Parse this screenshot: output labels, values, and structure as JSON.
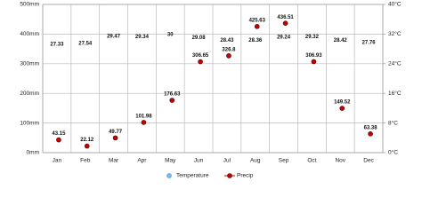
{
  "chart_data": {
    "type": "climate",
    "categories": [
      "Jan",
      "Feb",
      "Mar",
      "Apr",
      "May",
      "Jun",
      "Jul",
      "Aug",
      "Sep",
      "Oct",
      "Nov",
      "Dec"
    ],
    "series": [
      {
        "name": "Temperature",
        "color": "#7cb5ec",
        "axis": "y2",
        "values": [
          27.33,
          27.54,
          29.47,
          29.34,
          30,
          29.08,
          28.43,
          28.36,
          29.24,
          29.32,
          28.42,
          27.76
        ]
      },
      {
        "name": "Precip",
        "color": "#cc0000",
        "values": [
          43.15,
          22.12,
          49.77,
          101.98,
          176.63,
          306.65,
          326.8,
          425.63,
          436.51,
          306.93,
          149.52,
          63.38
        ]
      }
    ],
    "ylim": [
      0,
      500
    ],
    "yticks": [
      {
        "value": 0,
        "label": "0mm"
      },
      {
        "value": 100,
        "label": "100mm"
      },
      {
        "value": 200,
        "label": "200mm"
      },
      {
        "value": 300,
        "label": "300mm"
      },
      {
        "value": 400,
        "label": "400mm"
      },
      {
        "value": 500,
        "label": "500mm"
      }
    ],
    "y2lim": [
      0,
      40
    ],
    "y2ticks": [
      {
        "value": 0,
        "label": "0°C"
      },
      {
        "value": 8,
        "label": "8°C"
      },
      {
        "value": 16,
        "label": "16°C"
      },
      {
        "value": 24,
        "label": "24°C"
      },
      {
        "value": 32,
        "label": "32°C"
      },
      {
        "value": 40,
        "label": "40°C"
      }
    ],
    "grid": true,
    "legend": "bottom"
  }
}
